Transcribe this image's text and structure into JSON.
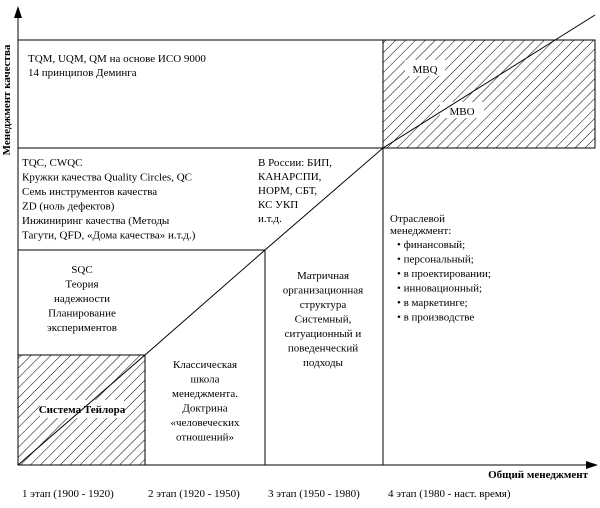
{
  "axes": {
    "y_label": "Менеджмент качества",
    "x_label": "Общий менеджмент"
  },
  "stages": [
    "1 этап (1900 - 1920)",
    "2 этап (1920 - 1950)",
    "3 этап (1950 - 1980)",
    "4 этап (1980 - наст. время)"
  ],
  "cells": {
    "tqm": [
      "TQM, UQM, QM на основе ИСО 9000",
      "14 принципов Деминга"
    ],
    "mbq": "MBQ",
    "mbo": "MBO",
    "tqc": [
      "TQC, CWQC",
      "Кружки качества Quality Circles, QC",
      "Семь инструментов качества",
      "ZD (ноль дефектов)",
      "Инжиниринг качества (Методы",
      "Тагути, QFD, «Дома качества» и.т.д.)"
    ],
    "russia": [
      "В России: БИП,",
      "КАНАРСПИ,",
      "НОРМ, СБТ,",
      "КС УКП",
      "и.т.д."
    ],
    "branch_title": [
      "Отраслевой",
      "менеджмент:"
    ],
    "branch_items": [
      "финансовый;",
      "персональный;",
      "в проектировании;",
      "инновационный;",
      "в маркетинге;",
      "в производстве"
    ],
    "sqc": [
      "SQC",
      "Теория",
      "надежности",
      "Планирование",
      "экспериментов"
    ],
    "matrix": [
      "Матричная",
      "организационная",
      "структура",
      "Системный,",
      "ситуационный и",
      "поведенческий",
      "подходы"
    ],
    "classic": [
      "Классическая",
      "школа",
      "менеджмента.",
      "Доктрина",
      "«человеческих",
      "отношений»"
    ],
    "taylor": "Система Тейлора"
  }
}
